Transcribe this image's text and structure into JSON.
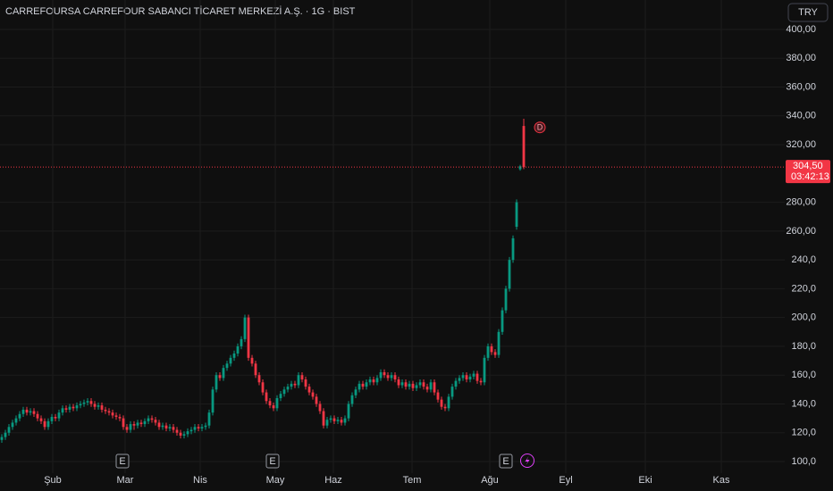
{
  "chart_data": {
    "type": "candlestick",
    "title": "CARREFOURSA CARREFOUR SABANCI TİCARET MERKEZİ A.Ş. · 1G · BIST",
    "currency": "TRY",
    "up_color": "#089981",
    "down_color": "#f23645",
    "open": [
      115,
      117,
      120,
      124,
      127,
      130,
      133,
      136,
      134,
      135,
      133,
      130,
      128,
      124,
      128,
      131,
      130,
      134,
      137,
      136,
      138,
      137,
      139,
      140,
      141,
      142,
      140,
      138,
      139,
      136,
      135,
      134,
      132,
      131,
      130,
      124,
      122,
      126,
      125,
      127,
      126,
      128,
      130,
      129,
      127,
      124,
      125,
      123,
      124,
      122,
      120,
      118,
      119,
      121,
      122,
      124,
      123,
      124,
      125,
      134,
      150,
      160,
      158,
      165,
      168,
      172,
      175,
      180,
      185,
      200,
      172,
      168,
      160,
      155,
      148,
      142,
      139,
      137,
      144,
      147,
      150,
      152,
      154,
      153,
      160,
      157,
      152,
      148,
      145,
      140,
      135,
      125,
      129,
      130,
      128,
      129,
      127,
      130,
      140,
      146,
      150,
      154,
      152,
      155,
      157,
      155,
      158,
      162,
      160,
      158,
      160,
      157,
      153,
      155,
      152,
      154,
      151,
      153,
      155,
      152,
      150,
      155,
      148,
      143,
      138,
      137,
      145,
      152,
      156,
      158,
      160,
      157,
      159,
      161,
      156,
      155,
      172,
      180,
      176,
      174,
      190,
      205,
      220,
      240,
      263,
      303,
      333
    ],
    "high": [
      119,
      122,
      126,
      129,
      132,
      135,
      138,
      138,
      137,
      137,
      135,
      132,
      130,
      130,
      133,
      133,
      136,
      139,
      139,
      140,
      140,
      141,
      142,
      143,
      144,
      144,
      142,
      141,
      141,
      138,
      137,
      136,
      134,
      133,
      132,
      126,
      128,
      128,
      129,
      129,
      130,
      132,
      132,
      131,
      129,
      127,
      127,
      126,
      126,
      124,
      122,
      121,
      123,
      124,
      126,
      126,
      126,
      127,
      136,
      152,
      162,
      162,
      167,
      170,
      174,
      177,
      182,
      187,
      202,
      202,
      174,
      170,
      162,
      157,
      150,
      144,
      141,
      146,
      149,
      152,
      154,
      156,
      156,
      162,
      162,
      159,
      154,
      150,
      147,
      142,
      137,
      131,
      132,
      132,
      131,
      131,
      132,
      142,
      148,
      152,
      156,
      156,
      157,
      159,
      159,
      160,
      164,
      164,
      162,
      162,
      162,
      159,
      157,
      157,
      156,
      156,
      155,
      157,
      157,
      154,
      157,
      157,
      150,
      145,
      140,
      147,
      154,
      158,
      160,
      162,
      162,
      161,
      163,
      163,
      158,
      174,
      182,
      182,
      178,
      192,
      207,
      222,
      242,
      257,
      282,
      306,
      338
    ],
    "low": [
      113,
      115,
      118,
      122,
      125,
      128,
      131,
      132,
      132,
      131,
      128,
      126,
      122,
      122,
      126,
      128,
      128,
      132,
      134,
      134,
      135,
      135,
      137,
      138,
      139,
      138,
      136,
      136,
      134,
      133,
      132,
      130,
      129,
      128,
      122,
      120,
      120,
      122,
      123,
      124,
      124,
      126,
      127,
      125,
      122,
      122,
      121,
      121,
      120,
      118,
      116,
      116,
      117,
      119,
      120,
      121,
      121,
      122,
      123,
      132,
      148,
      156,
      156,
      163,
      166,
      170,
      173,
      178,
      183,
      170,
      166,
      158,
      153,
      146,
      140,
      137,
      135,
      135,
      142,
      145,
      148,
      150,
      151,
      151,
      155,
      150,
      146,
      143,
      138,
      133,
      123,
      123,
      127,
      126,
      126,
      125,
      125,
      128,
      138,
      144,
      148,
      150,
      150,
      153,
      153,
      153,
      156,
      158,
      156,
      156,
      155,
      151,
      151,
      150,
      150,
      149,
      149,
      151,
      150,
      148,
      148,
      146,
      141,
      136,
      135,
      135,
      143,
      150,
      154,
      156,
      155,
      155,
      157,
      154,
      153,
      153,
      170,
      174,
      172,
      172,
      188,
      203,
      218,
      238,
      261,
      302,
      303
    ],
    "close": [
      117,
      120,
      124,
      127,
      130,
      133,
      136,
      134,
      135,
      133,
      130,
      128,
      124,
      128,
      131,
      130,
      134,
      137,
      136,
      138,
      137,
      139,
      140,
      141,
      142,
      140,
      138,
      139,
      136,
      135,
      134,
      132,
      131,
      130,
      124,
      122,
      126,
      125,
      127,
      126,
      128,
      130,
      129,
      127,
      124,
      125,
      123,
      124,
      122,
      120,
      118,
      119,
      121,
      122,
      124,
      123,
      124,
      125,
      134,
      150,
      160,
      158,
      165,
      168,
      172,
      175,
      180,
      185,
      200,
      172,
      168,
      160,
      155,
      148,
      142,
      139,
      137,
      144,
      147,
      150,
      152,
      154,
      153,
      160,
      157,
      152,
      148,
      145,
      140,
      135,
      125,
      129,
      130,
      128,
      129,
      127,
      130,
      140,
      146,
      150,
      154,
      152,
      155,
      157,
      155,
      158,
      162,
      160,
      158,
      160,
      157,
      153,
      155,
      152,
      154,
      151,
      153,
      155,
      152,
      150,
      155,
      148,
      143,
      138,
      137,
      145,
      152,
      156,
      158,
      160,
      157,
      159,
      161,
      156,
      155,
      172,
      180,
      176,
      174,
      190,
      205,
      220,
      240,
      255,
      280,
      305,
      304.5
    ],
    "ylim": [
      100,
      400
    ],
    "yticks": [
      {
        "value": 100,
        "label": "100,0"
      },
      {
        "value": 120,
        "label": "120,0"
      },
      {
        "value": 140,
        "label": "140,0"
      },
      {
        "value": 160,
        "label": "160,0"
      },
      {
        "value": 180,
        "label": "180,0"
      },
      {
        "value": 200,
        "label": "200,0"
      },
      {
        "value": 220,
        "label": "220,0"
      },
      {
        "value": 240,
        "label": "240,0"
      },
      {
        "value": 260,
        "label": "260,00"
      },
      {
        "value": 280,
        "label": "280,00"
      },
      {
        "value": 320,
        "label": "320,00"
      },
      {
        "value": 340,
        "label": "340,00"
      },
      {
        "value": 360,
        "label": "360,00"
      },
      {
        "value": 380,
        "label": "380,00"
      },
      {
        "value": 400,
        "label": "400,00"
      }
    ],
    "xlim": [
      -0.5,
      219
    ],
    "xticks": [
      {
        "value": 14.25,
        "label": "Şub"
      },
      {
        "value": 34.5,
        "label": "Mar"
      },
      {
        "value": 55.5,
        "label": "Nis"
      },
      {
        "value": 76.5,
        "label": "May"
      },
      {
        "value": 92.75,
        "label": "Haz"
      },
      {
        "value": 114.75,
        "label": "Tem"
      },
      {
        "value": 136.5,
        "label": "Ağu"
      },
      {
        "value": 157.75,
        "label": "Eyl"
      },
      {
        "value": 180,
        "label": "Eki"
      },
      {
        "value": 201.25,
        "label": "Kas"
      }
    ],
    "grid": true,
    "last_price": {
      "value": 304.5,
      "label": "304,50",
      "countdown": "03:42:13"
    },
    "events": [
      {
        "x": 33.75,
        "label": "E"
      },
      {
        "x": 75.75,
        "label": "E"
      },
      {
        "x": 141,
        "label": "E"
      }
    ],
    "dividend": {
      "x": 150.5,
      "y": 332,
      "label": "D"
    },
    "split_marker_x": 147
  }
}
